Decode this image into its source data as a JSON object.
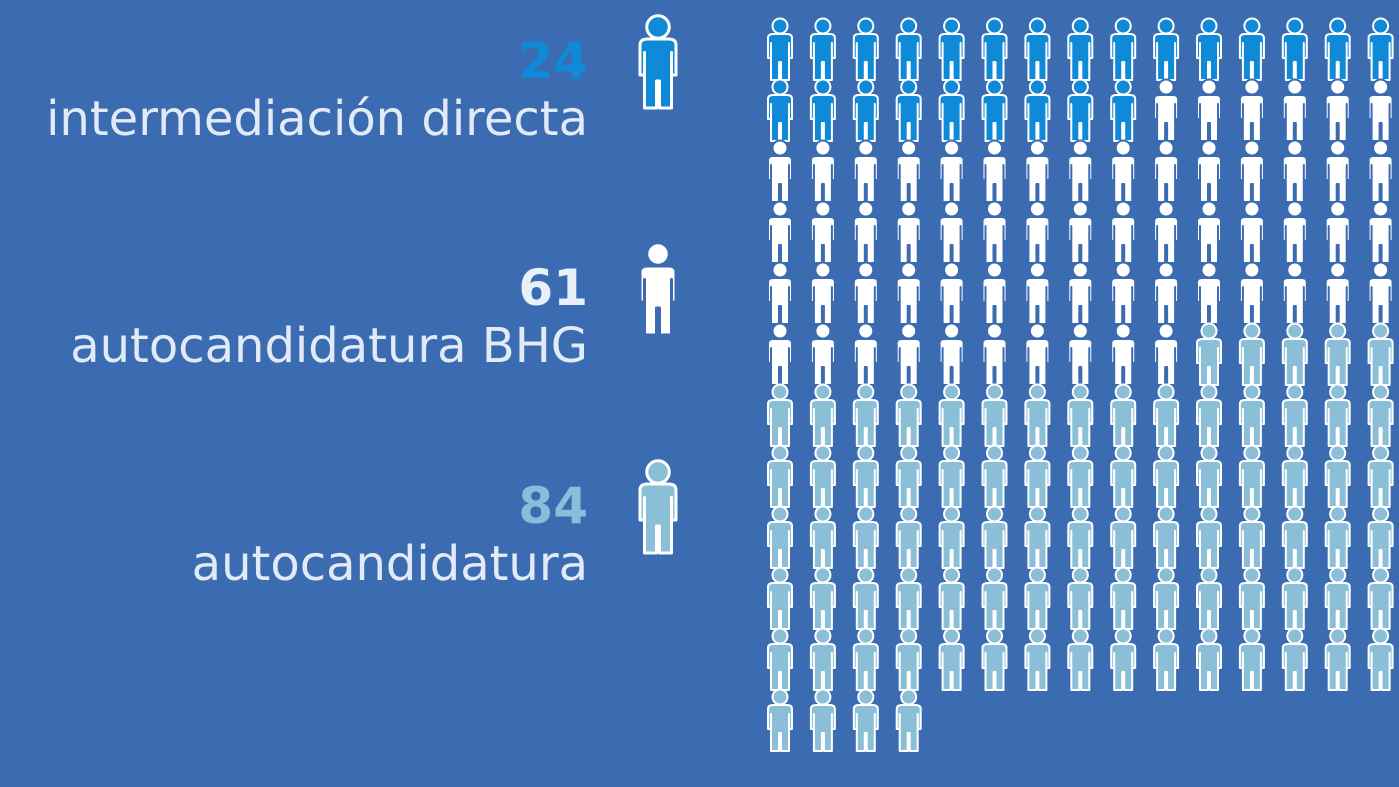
{
  "chart_data": {
    "type": "pictogram",
    "categories": [
      "intermediación directa",
      "autocandidatura BHG",
      "autocandidatura"
    ],
    "values": [
      24,
      61,
      84
    ],
    "colors": [
      "#0f8ad8",
      "#ffffff",
      "#8bbfd7"
    ],
    "value_colors": [
      "#0f8ad8",
      "#e8f0fa",
      "#8bbcd9"
    ]
  }
}
